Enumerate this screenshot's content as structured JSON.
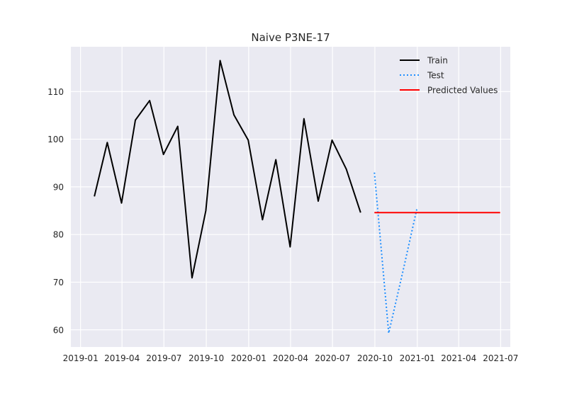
{
  "chart_data": {
    "type": "line",
    "title": "Naive P3NE-17",
    "xlabel": "",
    "ylabel": "",
    "x_tick_labels": [
      "2019-01",
      "2019-04",
      "2019-07",
      "2019-10",
      "2020-01",
      "2020-04",
      "2020-07",
      "2020-10",
      "2021-01",
      "2021-04",
      "2021-07"
    ],
    "x_tick_dates": [
      "2019-01-01",
      "2019-04-01",
      "2019-07-01",
      "2019-10-01",
      "2020-01-01",
      "2020-04-01",
      "2020-07-01",
      "2020-10-01",
      "2021-01-01",
      "2021-04-01",
      "2021-07-01"
    ],
    "y_ticks": [
      60,
      70,
      80,
      90,
      100,
      110
    ],
    "xlim": [
      "2018-12-11",
      "2021-07-22"
    ],
    "ylim": [
      56.4,
      119.4
    ],
    "grid": true,
    "legend_placement": "upper-right",
    "series": [
      {
        "name": "Train",
        "color": "#000000",
        "style": "solid",
        "x": [
          "2019-01-31",
          "2019-02-28",
          "2019-03-31",
          "2019-04-30",
          "2019-05-31",
          "2019-06-30",
          "2019-07-31",
          "2019-08-31",
          "2019-09-30",
          "2019-10-31",
          "2019-11-30",
          "2019-12-31",
          "2020-01-31",
          "2020-02-29",
          "2020-03-31",
          "2020-04-30",
          "2020-05-31",
          "2020-06-30",
          "2020-07-31",
          "2020-08-31"
        ],
        "values": [
          88.0,
          99.3,
          86.6,
          104.0,
          108.1,
          96.8,
          102.7,
          70.9,
          85.0,
          116.5,
          105.1,
          99.8,
          83.1,
          95.7,
          77.4,
          104.3,
          87.0,
          99.8,
          93.7,
          84.6
        ]
      },
      {
        "name": "Test",
        "color": "#1f8fff",
        "style": "dotted",
        "x": [
          "2020-09-30",
          "2020-10-31",
          "2020-11-30",
          "2020-12-31"
        ],
        "values": [
          93.0,
          59.3,
          71.9,
          85.3
        ]
      },
      {
        "name": "Predicted Values",
        "color": "#ff0000",
        "style": "solid",
        "x": [
          "2020-09-30",
          "2021-06-30"
        ],
        "values": [
          84.6,
          84.6
        ]
      }
    ]
  }
}
